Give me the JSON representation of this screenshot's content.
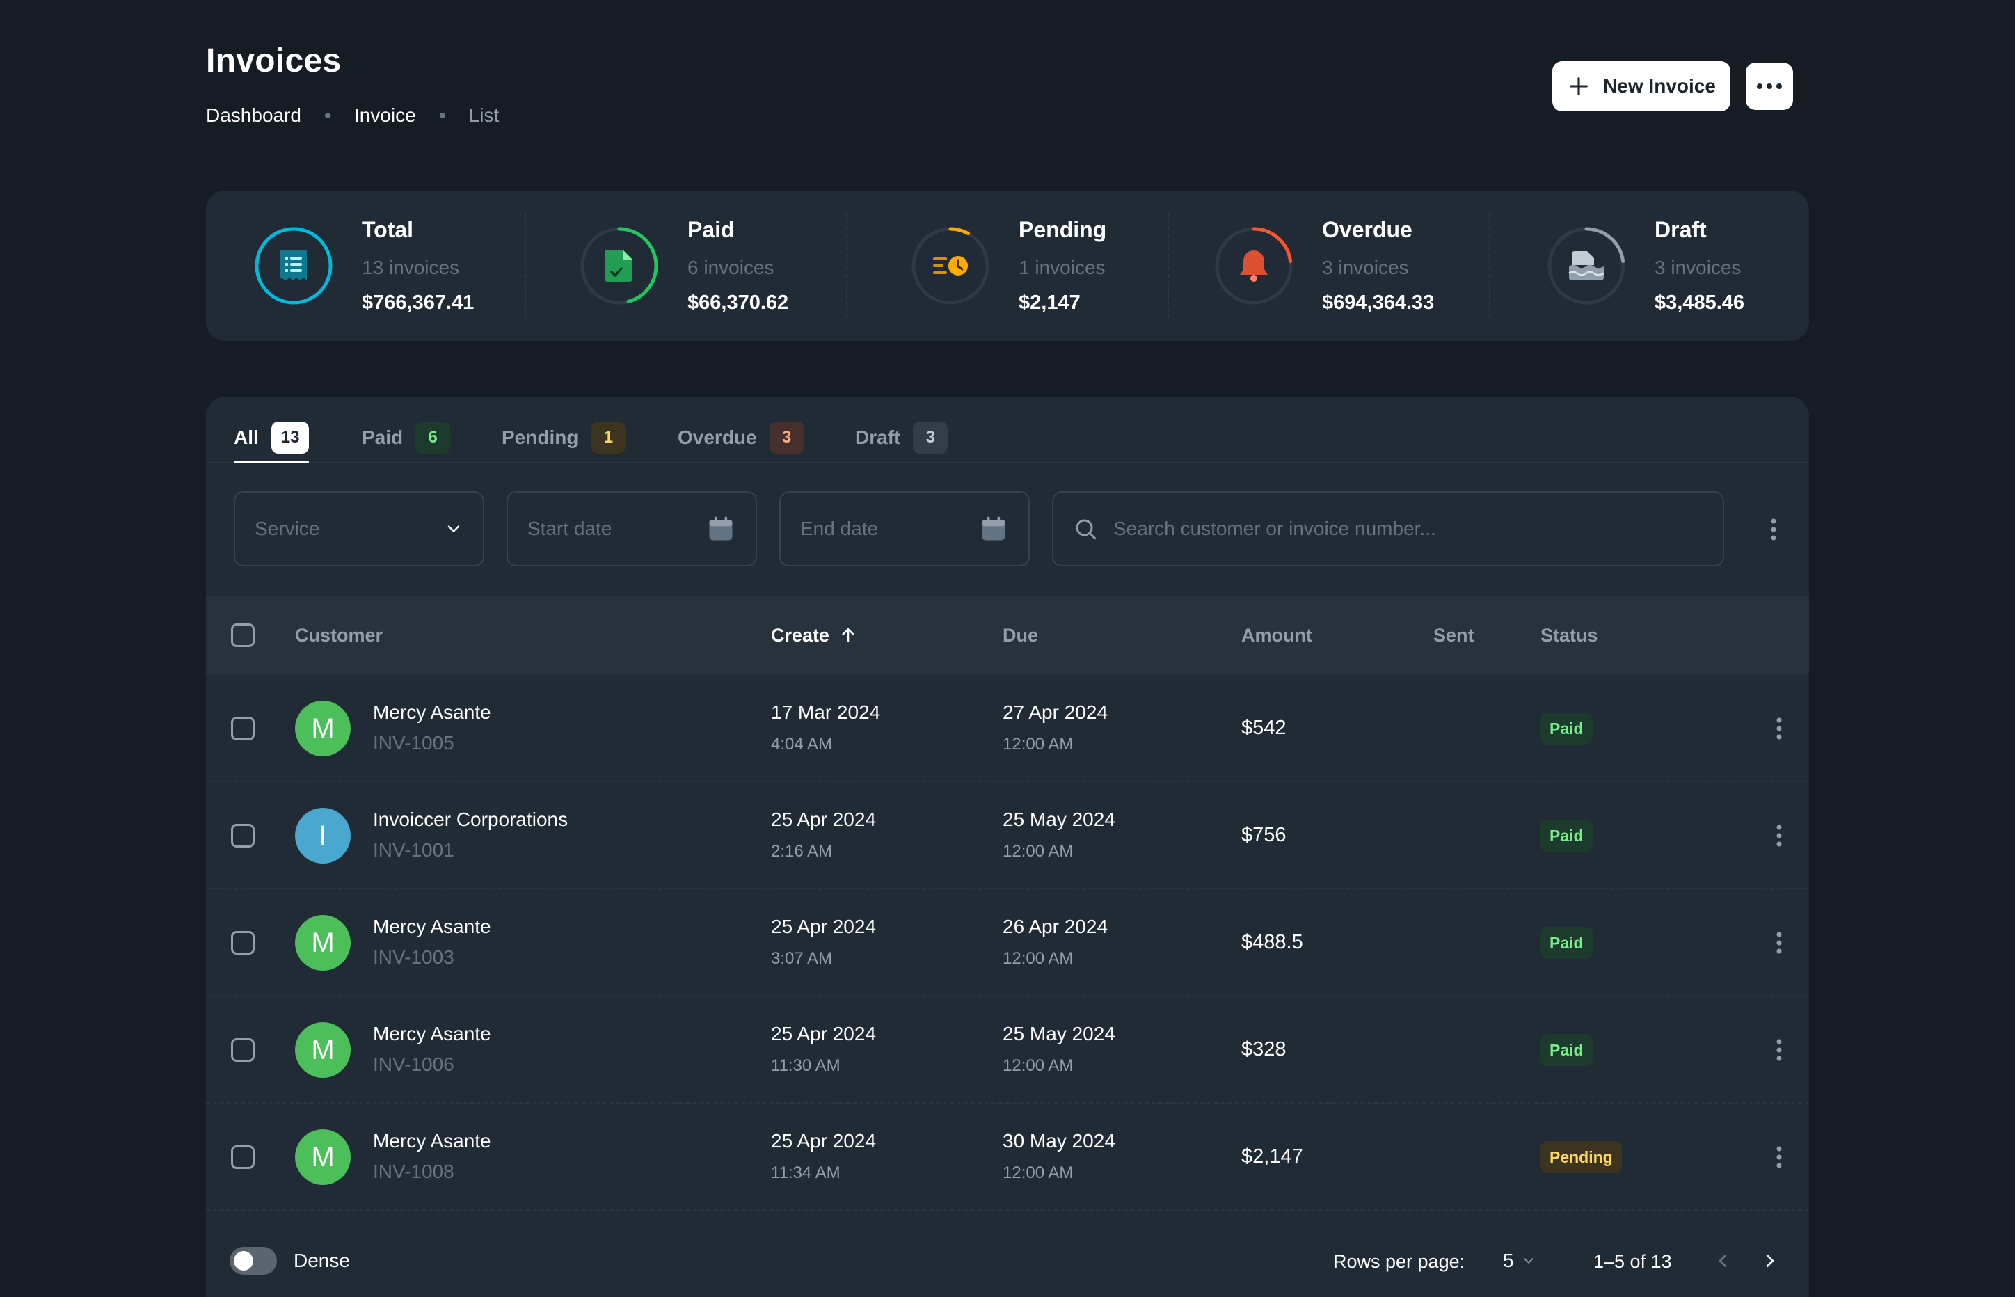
{
  "header": {
    "title": "Invoices",
    "breadcrumb": [
      "Dashboard",
      "Invoice",
      "List"
    ],
    "new_button_label": "New Invoice",
    "more_icon": "more-horizontal-icon"
  },
  "stats": [
    {
      "label": "Total",
      "count": "13 invoices",
      "amount": "$766,367.41",
      "color": "#00b8d9",
      "progress": 1.0,
      "icon": "receipt-icon"
    },
    {
      "label": "Paid",
      "count": "6 invoices",
      "amount": "$66,370.62",
      "color": "#22c55e",
      "progress": 0.46,
      "icon": "file-check-icon"
    },
    {
      "label": "Pending",
      "count": "1 invoices",
      "amount": "$2,147",
      "color": "#ffab00",
      "progress": 0.08,
      "icon": "sort-clock-icon"
    },
    {
      "label": "Overdue",
      "count": "3 invoices",
      "amount": "$694,364.33",
      "color": "#ff5630",
      "progress": 0.23,
      "icon": "bell-icon"
    },
    {
      "label": "Draft",
      "count": "3 invoices",
      "amount": "$3,485.46",
      "color": "#919eab",
      "progress": 0.23,
      "icon": "file-stack-icon"
    }
  ],
  "tabs": [
    {
      "label": "All",
      "count": "13",
      "active": true
    },
    {
      "label": "Paid",
      "count": "6"
    },
    {
      "label": "Pending",
      "count": "1"
    },
    {
      "label": "Overdue",
      "count": "3"
    },
    {
      "label": "Draft",
      "count": "3"
    }
  ],
  "filters": {
    "service_placeholder": "Service",
    "start_date_placeholder": "Start date",
    "end_date_placeholder": "End date",
    "search_placeholder": "Search customer or invoice number..."
  },
  "table": {
    "columns": [
      "Customer",
      "Create",
      "Due",
      "Amount",
      "Sent",
      "Status"
    ],
    "sorted_column": "Create",
    "sort_direction": "asc",
    "rows": [
      {
        "initial": "M",
        "avatar_color": "#4cbf5a",
        "name": "Mercy Asante",
        "invoice": "INV-1005",
        "create_date": "17 Mar 2024",
        "create_time": "4:04 AM",
        "due_date": "27 Apr 2024",
        "due_time": "12:00 AM",
        "amount": "$542",
        "sent": "",
        "status": "Paid"
      },
      {
        "initial": "I",
        "avatar_color": "#4aa8cf",
        "name": "Invoiccer Corporations",
        "invoice": "INV-1001",
        "create_date": "25 Apr 2024",
        "create_time": "2:16 AM",
        "due_date": "25 May 2024",
        "due_time": "12:00 AM",
        "amount": "$756",
        "sent": "",
        "status": "Paid"
      },
      {
        "initial": "M",
        "avatar_color": "#4cbf5a",
        "name": "Mercy Asante",
        "invoice": "INV-1003",
        "create_date": "25 Apr 2024",
        "create_time": "3:07 AM",
        "due_date": "26 Apr 2024",
        "due_time": "12:00 AM",
        "amount": "$488.5",
        "sent": "",
        "status": "Paid"
      },
      {
        "initial": "M",
        "avatar_color": "#4cbf5a",
        "name": "Mercy Asante",
        "invoice": "INV-1006",
        "create_date": "25 Apr 2024",
        "create_time": "11:30 AM",
        "due_date": "25 May 2024",
        "due_time": "12:00 AM",
        "amount": "$328",
        "sent": "",
        "status": "Paid"
      },
      {
        "initial": "M",
        "avatar_color": "#4cbf5a",
        "name": "Mercy Asante",
        "invoice": "INV-1008",
        "create_date": "25 Apr 2024",
        "create_time": "11:34 AM",
        "due_date": "30 May 2024",
        "due_time": "12:00 AM",
        "amount": "$2,147",
        "sent": "",
        "status": "Pending"
      }
    ]
  },
  "footer": {
    "dense_label": "Dense",
    "dense_on": false,
    "rows_per_page_label": "Rows per page:",
    "rows_per_page": "5",
    "range": "1–5 of 13"
  },
  "colors": {
    "background": "#161c24",
    "card": "#212b36",
    "paid_badge_bg": "#1d3b2c",
    "paid_badge_text": "#77ed8b",
    "pending_badge_bg": "#3d3420",
    "pending_badge_text": "#ffd666",
    "overdue_badge_bg": "#45302c",
    "overdue_badge_text": "#ffac82",
    "draft_badge_bg": "#333d48",
    "draft_badge_text": "#c4cdd5"
  }
}
